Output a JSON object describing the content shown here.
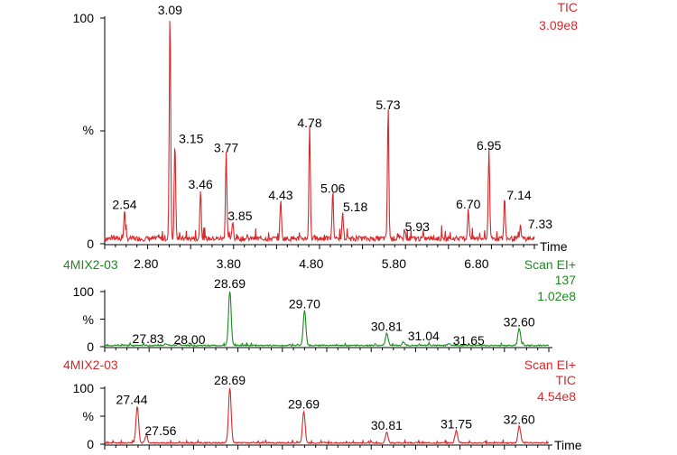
{
  "colors": {
    "red": "#d8282b",
    "green": "#1c8a1c",
    "axis": "#000000"
  },
  "panel1": {
    "trace_title": "TIC",
    "trace_intensity": "3.09e8",
    "y_top": "100",
    "y_mid": "%",
    "y_zero": "0",
    "x_axis_title": "Time"
  },
  "panel2": {
    "sample": "4MIX2-03",
    "scan": "Scan EI+",
    "mass": "137",
    "intensity": "1.02e8",
    "y_top": "100",
    "y_mid": "%",
    "y_zero": "0"
  },
  "panel3": {
    "sample": "4MIX2-03",
    "scan": "Scan EI+",
    "trace_title": "TIC",
    "intensity": "4.54e8",
    "y_top": "100",
    "y_mid": "%",
    "y_zero": "0",
    "x_axis_title": "Time"
  },
  "chart_data": [
    {
      "type": "line",
      "title": "TIC 3.09e8",
      "xlabel": "Time",
      "ylabel": "%",
      "xlim": [
        2.3,
        7.5
      ],
      "ylim": [
        0,
        100
      ],
      "x_ticks": [
        "2.80",
        "3.80",
        "4.80",
        "5.80",
        "6.80"
      ],
      "y_ticks": [
        "0",
        "%",
        "100"
      ],
      "peaks": [
        {
          "x": 2.54,
          "label": "2.54",
          "y": 13
        },
        {
          "x": 3.09,
          "label": "3.09",
          "y": 100
        },
        {
          "x": 3.15,
          "label": "3.15",
          "y": 43
        },
        {
          "x": 3.46,
          "label": "3.46",
          "y": 22
        },
        {
          "x": 3.77,
          "label": "3.77",
          "y": 39
        },
        {
          "x": 3.85,
          "label": "3.85",
          "y": 8
        },
        {
          "x": 4.43,
          "label": "4.43",
          "y": 18
        },
        {
          "x": 4.78,
          "label": "4.78",
          "y": 50
        },
        {
          "x": 5.06,
          "label": "5.06",
          "y": 21
        },
        {
          "x": 5.18,
          "label": "5.18",
          "y": 12
        },
        {
          "x": 5.73,
          "label": "5.73",
          "y": 58
        },
        {
          "x": 5.93,
          "label": "5.93",
          "y": 4
        },
        {
          "x": 6.7,
          "label": "6.70",
          "y": 14
        },
        {
          "x": 6.95,
          "label": "6.95",
          "y": 40
        },
        {
          "x": 7.14,
          "label": "7.14",
          "y": 18
        },
        {
          "x": 7.33,
          "label": "7.33",
          "y": 6
        }
      ]
    },
    {
      "type": "line",
      "title": "4MIX2-03 Scan EI+ 137 1.02e8",
      "ylabel": "%",
      "xlim": [
        27.0,
        33.0
      ],
      "ylim": [
        0,
        100
      ],
      "y_ticks": [
        "0",
        "%",
        "100"
      ],
      "peaks": [
        {
          "x": 27.83,
          "label": "27.83",
          "y": 3
        },
        {
          "x": 28.0,
          "label": "28.00",
          "y": 2
        },
        {
          "x": 28.69,
          "label": "28.69",
          "y": 100
        },
        {
          "x": 29.7,
          "label": "29.70",
          "y": 63
        },
        {
          "x": 30.81,
          "label": "30.81",
          "y": 22
        },
        {
          "x": 31.04,
          "label": "31.04",
          "y": 5
        },
        {
          "x": 31.65,
          "label": "31.65",
          "y": 3
        },
        {
          "x": 32.6,
          "label": "32.60",
          "y": 30
        }
      ]
    },
    {
      "type": "line",
      "title": "4MIX2-03 Scan EI+ TIC 4.54e8",
      "xlabel": "Time",
      "ylabel": "%",
      "xlim": [
        27.0,
        33.0
      ],
      "ylim": [
        0,
        100
      ],
      "y_ticks": [
        "0",
        "%",
        "100"
      ],
      "peaks": [
        {
          "x": 27.44,
          "label": "27.44",
          "y": 65
        },
        {
          "x": 27.56,
          "label": "27.56",
          "y": 13
        },
        {
          "x": 28.69,
          "label": "28.69",
          "y": 100
        },
        {
          "x": 29.69,
          "label": "29.69",
          "y": 57
        },
        {
          "x": 30.81,
          "label": "30.81",
          "y": 19
        },
        {
          "x": 31.75,
          "label": "31.75",
          "y": 22
        },
        {
          "x": 32.6,
          "label": "32.60",
          "y": 30
        }
      ]
    }
  ]
}
